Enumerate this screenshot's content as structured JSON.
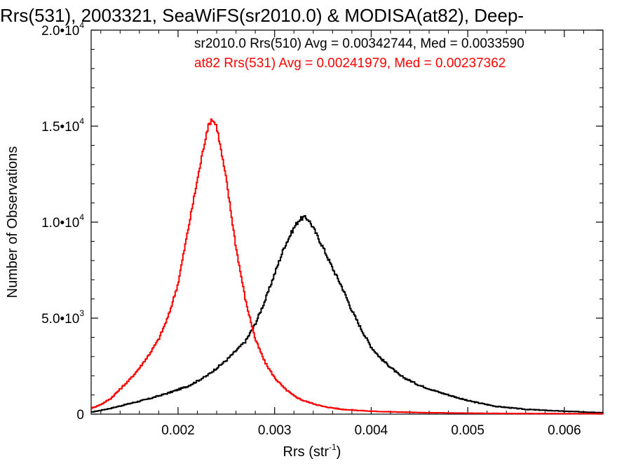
{
  "chart_data": {
    "type": "line",
    "title": "Rrs(531), 2003321, SeaWiFS(sr2010.0) & MODISA(at82), Deep-",
    "xlabel": "Rrs (str",
    "xlabel_sup": "-1",
    "xlabel_close": ")",
    "ylabel": "Number of Observations",
    "xlim": [
      0.0011,
      0.0064
    ],
    "ylim": [
      0,
      20000
    ],
    "x_ticks": [
      {
        "value": 0.002,
        "label": "0.002"
      },
      {
        "value": 0.003,
        "label": "0.003"
      },
      {
        "value": 0.004,
        "label": "0.004"
      },
      {
        "value": 0.005,
        "label": "0.005"
      },
      {
        "value": 0.006,
        "label": "0.006"
      }
    ],
    "y_ticks": [
      {
        "value": 0,
        "mantissa": "0",
        "exponent": ""
      },
      {
        "value": 5000,
        "mantissa": "5.0•10",
        "exponent": "3"
      },
      {
        "value": 10000,
        "mantissa": "1.0•10",
        "exponent": "4"
      },
      {
        "value": 15000,
        "mantissa": "1.5•10",
        "exponent": "4"
      },
      {
        "value": 20000,
        "mantissa": "2.0•10",
        "exponent": "4"
      }
    ],
    "legend": [
      {
        "text": "sr2010.0 Rrs(510) Avg = 0.00342744, Med = 0.0033590",
        "color": "#000000"
      },
      {
        "text": "at82 Rrs(531) Avg = 0.00241979, Med = 0.00237362",
        "color": "#ff0000"
      }
    ],
    "series": [
      {
        "color": "#000000",
        "x": [
          0.0011,
          0.0013,
          0.0015,
          0.0017,
          0.0019,
          0.0021,
          0.0023,
          0.0025,
          0.0027,
          0.0028,
          0.0029,
          0.003,
          0.0031,
          0.0032,
          0.00325,
          0.0033,
          0.00335,
          0.0034,
          0.0035,
          0.0036,
          0.0037,
          0.0038,
          0.0039,
          0.004,
          0.0041,
          0.0042,
          0.0043,
          0.0045,
          0.0047,
          0.005,
          0.0053,
          0.0056,
          0.006,
          0.0064
        ],
        "y": [
          100,
          300,
          550,
          800,
          1100,
          1450,
          2000,
          2800,
          3800,
          4700,
          5900,
          7300,
          8700,
          9700,
          10100,
          10250,
          10150,
          9700,
          8700,
          7600,
          6600,
          5400,
          4400,
          3500,
          2900,
          2450,
          2000,
          1500,
          1150,
          700,
          400,
          250,
          150,
          80
        ]
      },
      {
        "color": "#ff0000",
        "x": [
          0.0011,
          0.0012,
          0.0013,
          0.0014,
          0.0015,
          0.0016,
          0.0017,
          0.0018,
          0.0019,
          0.002,
          0.0021,
          0.0022,
          0.0023,
          0.00235,
          0.0024,
          0.0025,
          0.0026,
          0.0027,
          0.0028,
          0.0029,
          0.003,
          0.0031,
          0.0032,
          0.0033,
          0.0035,
          0.0037,
          0.004,
          0.0045,
          0.005,
          0.0055,
          0.0064
        ],
        "y": [
          300,
          500,
          800,
          1300,
          1800,
          2400,
          3100,
          3900,
          5100,
          6800,
          9500,
          12200,
          14800,
          15400,
          15000,
          12200,
          8700,
          5900,
          3900,
          2700,
          1900,
          1350,
          950,
          700,
          400,
          250,
          150,
          80,
          50,
          30,
          20
        ]
      }
    ],
    "grid": false
  }
}
